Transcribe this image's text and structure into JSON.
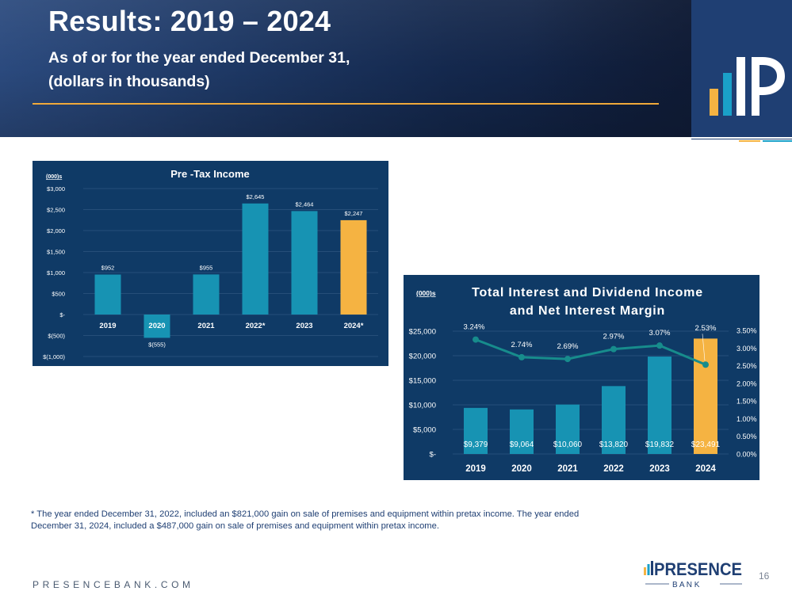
{
  "header": {
    "title": "Results: 2019 – 2024",
    "subtitle_line1": "As of or for the year ended December 31,",
    "subtitle_line2": "(dollars in thousands)"
  },
  "colors": {
    "navy": "#0f3a66",
    "teal": "#1793b3",
    "gold": "#f5b342",
    "line": "#178c8c",
    "grid": "#2f5680"
  },
  "chart_data": [
    {
      "type": "bar",
      "title": "Pre -Tax Income",
      "unit_label": "(000)s",
      "categories": [
        "2019",
        "2020",
        "2021",
        "2022*",
        "2023",
        "2024*"
      ],
      "values": [
        952,
        -555,
        955,
        2645,
        2464,
        2247
      ],
      "value_labels": [
        "$952",
        "$(555)",
        "$955",
        "$2,645",
        "$2,464",
        "$2,247"
      ],
      "highlight_index": 5,
      "ylim": [
        -1000,
        3000
      ],
      "yticks": [
        3000,
        2500,
        2000,
        1500,
        1000,
        500,
        0,
        -500,
        -1000
      ],
      "ytick_labels": [
        "$3,000",
        "$2,500",
        "$2,000",
        "$1,500",
        "$1,000",
        "$500",
        "$-",
        "$(500)",
        "$(1,000)"
      ],
      "grid": true
    },
    {
      "type": "bar+line",
      "title_line1": "Total Interest and Dividend Income",
      "title_line2": "and Net Interest Margin",
      "unit_label": "(000)s",
      "categories": [
        "2019",
        "2020",
        "2021",
        "2022",
        "2023",
        "2024"
      ],
      "bar_series": {
        "name": "Total Interest and Dividend Income",
        "values": [
          9379,
          9064,
          10060,
          13820,
          19832,
          23491
        ],
        "labels": [
          "$9,379",
          "$9,064",
          "$10,060",
          "$13,820",
          "$19,832",
          "$23,491"
        ]
      },
      "line_series": {
        "name": "Net Interest Margin",
        "values": [
          3.24,
          2.74,
          2.69,
          2.97,
          3.07,
          2.53
        ],
        "labels": [
          "3.24%",
          "2.74%",
          "2.69%",
          "2.97%",
          "3.07%",
          "2.53%"
        ]
      },
      "highlight_index": 5,
      "ylim_left": [
        0,
        25000
      ],
      "yticks_left": [
        25000,
        20000,
        15000,
        10000,
        5000,
        0
      ],
      "ytick_labels_left": [
        "$25,000",
        "$20,000",
        "$15,000",
        "$10,000",
        "$5,000",
        "$-"
      ],
      "ylim_right": [
        0,
        3.5
      ],
      "yticks_right": [
        3.5,
        3.0,
        2.5,
        2.0,
        1.5,
        1.0,
        0.5,
        0
      ],
      "ytick_labels_right": [
        "3.50%",
        "3.00%",
        "2.50%",
        "2.00%",
        "1.50%",
        "1.00%",
        "0.50%",
        "0.00%"
      ],
      "grid": true
    }
  ],
  "footnote": {
    "line1": "* The year ended December 31, 2022,  included an $821,000 gain on sale of premises and equipment within pretax income. The year ended",
    "line2": "December 31, 2024, included a $487,000 gain on sale of premises and equipment within pretax income."
  },
  "footer": {
    "website": "PRESENCEBANK.COM",
    "brand_name": "PRESENCE",
    "brand_sub": "B A N K",
    "page_number": "16"
  }
}
